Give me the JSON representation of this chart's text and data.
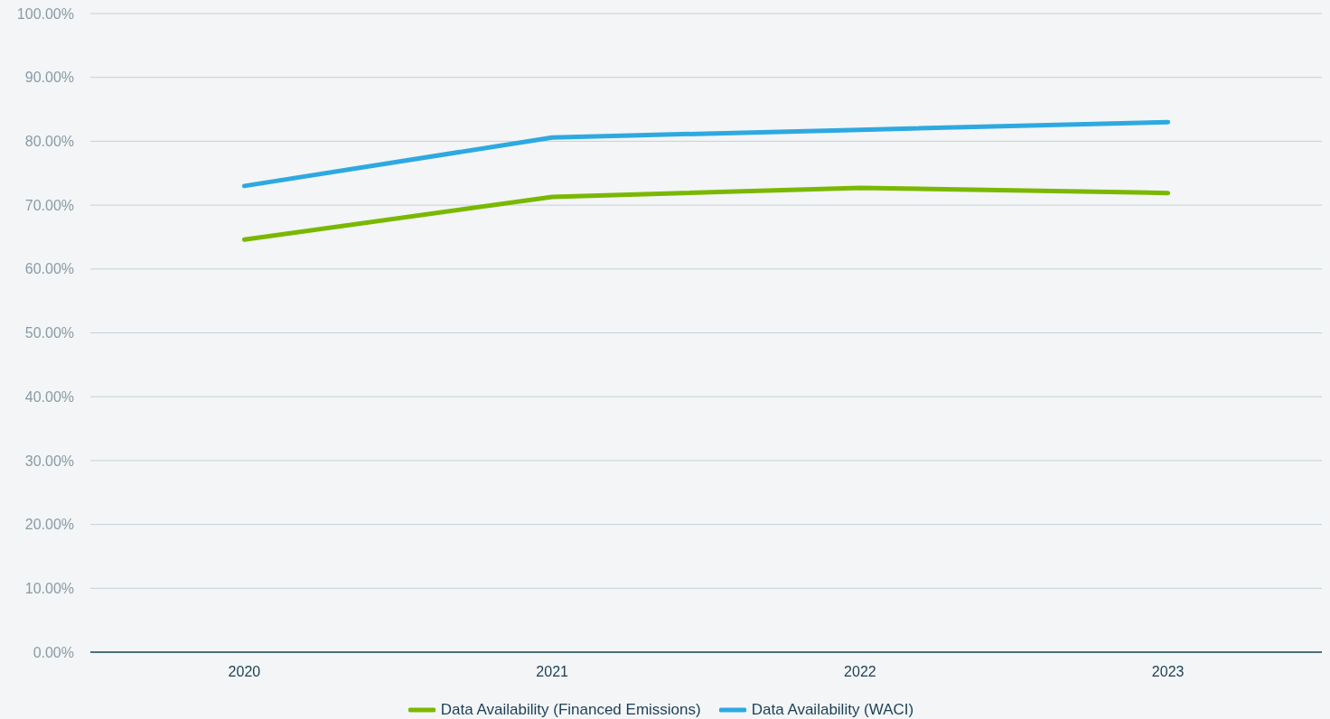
{
  "chart_data": {
    "type": "line",
    "categories": [
      "2020",
      "2021",
      "2022",
      "2023"
    ],
    "series": [
      {
        "name": "Data Availability (Financed Emissions)",
        "color": "#7ab800",
        "values": [
          64.6,
          71.3,
          72.7,
          71.9
        ]
      },
      {
        "name": "Data Availability (WACI)",
        "color": "#2ea9e0",
        "values": [
          73.0,
          80.6,
          81.8,
          83.0
        ]
      }
    ],
    "ylim": [
      0,
      100
    ],
    "yticks": [
      {
        "value": 0,
        "label": "0.00%"
      },
      {
        "value": 10,
        "label": "10.00%"
      },
      {
        "value": 20,
        "label": "20.00%"
      },
      {
        "value": 30,
        "label": "30.00%"
      },
      {
        "value": 40,
        "label": "40.00%"
      },
      {
        "value": 50,
        "label": "50.00%"
      },
      {
        "value": 60,
        "label": "60.00%"
      },
      {
        "value": 70,
        "label": "70.00%"
      },
      {
        "value": 80,
        "label": "80.00%"
      },
      {
        "value": 90,
        "label": "90.00%"
      },
      {
        "value": 100,
        "label": "100.00%"
      }
    ],
    "grid": "y",
    "legend": "bottom",
    "marker": "none",
    "line_style": "solid"
  }
}
